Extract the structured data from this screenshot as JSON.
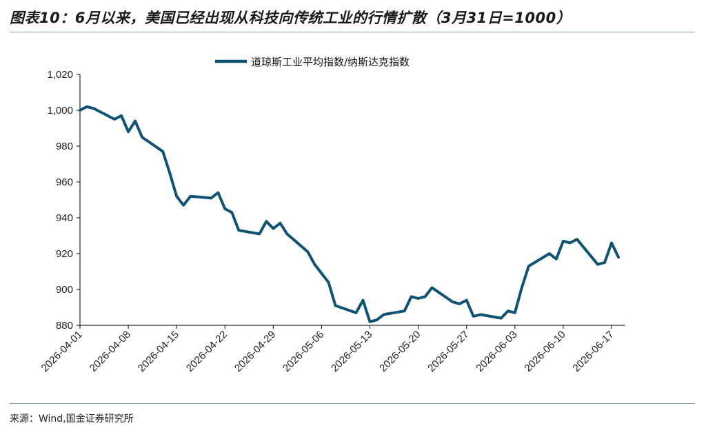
{
  "figure": {
    "title": "图表10：6月以来，美国已经出现从科技向传统工业的行情扩散（3月31日=1000）",
    "source": "来源：Wind,国金证券研究所"
  },
  "colors": {
    "line": "#0f5274",
    "axis": "#000000",
    "rule": "#7f9bb0"
  },
  "chart_data": {
    "type": "line",
    "title": "图表10：6月以来，美国已经出现从科技向传统工业的行情扩散（3月31日=1000）",
    "xlabel": "",
    "ylabel": "",
    "ylim": [
      880,
      1020
    ],
    "yticks": [
      880,
      900,
      920,
      940,
      960,
      980,
      1000,
      1020
    ],
    "ytick_labels": [
      "880",
      "900",
      "920",
      "940",
      "960",
      "980",
      "1,000",
      "1,020"
    ],
    "xlim": [
      "2026-04-01",
      "2026-06-19"
    ],
    "xticks": [
      "2026-04-01",
      "2026-04-08",
      "2026-04-15",
      "2026-04-22",
      "2026-04-29",
      "2026-05-06",
      "2026-05-13",
      "2026-05-20",
      "2026-05-27",
      "2026-06-03",
      "2026-06-10",
      "2026-06-17"
    ],
    "grid": false,
    "legend": "top-center",
    "series": [
      {
        "name": "道琼斯工业平均指数/纳斯达克指数",
        "x": [
          "2026-04-01",
          "2026-04-02",
          "2026-04-03",
          "2026-04-06",
          "2026-04-07",
          "2026-04-08",
          "2026-04-09",
          "2026-04-10",
          "2026-04-13",
          "2026-04-14",
          "2026-04-15",
          "2026-04-16",
          "2026-04-17",
          "2026-04-20",
          "2026-04-21",
          "2026-04-22",
          "2026-04-23",
          "2026-04-24",
          "2026-04-27",
          "2026-04-28",
          "2026-04-29",
          "2026-04-30",
          "2026-05-01",
          "2026-05-04",
          "2026-05-05",
          "2026-05-06",
          "2026-05-07",
          "2026-05-08",
          "2026-05-11",
          "2026-05-12",
          "2026-05-13",
          "2026-05-14",
          "2026-05-15",
          "2026-05-18",
          "2026-05-19",
          "2026-05-20",
          "2026-05-21",
          "2026-05-22",
          "2026-05-25",
          "2026-05-26",
          "2026-05-27",
          "2026-05-28",
          "2026-05-29",
          "2026-06-01",
          "2026-06-02",
          "2026-06-03",
          "2026-06-04",
          "2026-06-05",
          "2026-06-08",
          "2026-06-09",
          "2026-06-10",
          "2026-06-11",
          "2026-06-12",
          "2026-06-15",
          "2026-06-16",
          "2026-06-17",
          "2026-06-18"
        ],
        "values": [
          1000,
          1002,
          1001,
          995,
          997,
          988,
          994,
          985,
          977,
          965,
          952,
          947,
          952,
          951,
          954,
          945,
          943,
          933,
          931,
          938,
          934,
          937,
          931,
          921,
          914,
          909,
          904,
          891,
          887,
          894,
          882,
          883,
          886,
          888,
          896,
          895,
          896,
          901,
          893,
          892,
          894,
          885,
          886,
          884,
          888,
          887,
          901,
          913,
          920,
          917,
          927,
          926,
          928,
          914,
          915,
          926,
          918
        ]
      }
    ]
  }
}
